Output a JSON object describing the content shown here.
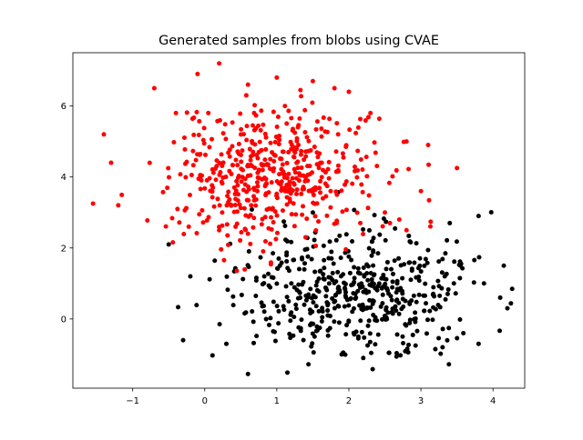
{
  "chart_data": {
    "type": "scatter",
    "title": "Generated samples from blobs using CVAE",
    "xlabel": "",
    "ylabel": "",
    "xlim": [
      -1.83,
      4.44
    ],
    "ylim": [
      -1.95,
      7.5
    ],
    "xticks": [
      -1,
      0,
      1,
      2,
      3,
      4
    ],
    "yticks": [
      0,
      2,
      4,
      6
    ],
    "xtick_labels": [
      "−1",
      "0",
      "1",
      "2",
      "3",
      "4"
    ],
    "ytick_labels": [
      "0",
      "2",
      "4",
      "6"
    ],
    "grid": false,
    "legend": false,
    "series": [
      {
        "color": "#ff0000",
        "generator": {
          "count": 500,
          "center": [
            0.95,
            4.05
          ],
          "spread": [
            0.7,
            0.95
          ],
          "seed": 7
        },
        "points": [
          [
            0.2,
            7.2
          ],
          [
            -0.1,
            6.9
          ],
          [
            0.6,
            6.6
          ],
          [
            1.0,
            6.8
          ],
          [
            1.5,
            6.7
          ],
          [
            1.8,
            6.5
          ],
          [
            -0.7,
            6.5
          ],
          [
            -0.4,
            5.8
          ],
          [
            -1.4,
            5.2
          ],
          [
            -1.55,
            3.25
          ],
          [
            -1.3,
            4.4
          ],
          [
            -1.2,
            3.2
          ],
          [
            0.2,
            2.5
          ],
          [
            0.6,
            2.4
          ],
          [
            1.4,
            2.3
          ],
          [
            2.7,
            2.8
          ],
          [
            2.8,
            2.5
          ],
          [
            3.5,
            4.25
          ],
          [
            3.1,
            4.9
          ],
          [
            2.8,
            5.0
          ],
          [
            3.0,
            3.6
          ],
          [
            2.5,
            3.0
          ],
          [
            2.0,
            6.4
          ],
          [
            2.3,
            5.8
          ]
        ]
      },
      {
        "color": "#000000",
        "generator": {
          "count": 500,
          "center": [
            2.1,
            0.75
          ],
          "spread": [
            0.85,
            0.85
          ],
          "seed": 13
        },
        "points": [
          [
            0.6,
            -1.55
          ],
          [
            1.5,
            3.0
          ],
          [
            3.4,
            2.7
          ],
          [
            3.8,
            2.9
          ],
          [
            4.15,
            1.5
          ],
          [
            4.2,
            0.3
          ],
          [
            4.1,
            0.6
          ],
          [
            3.8,
            -0.7
          ],
          [
            -0.3,
            -0.6
          ],
          [
            -0.5,
            2.1
          ],
          [
            -0.2,
            1.2
          ],
          [
            2.2,
            -1.1
          ],
          [
            0.3,
            -0.7
          ],
          [
            1.9,
            -1.0
          ],
          [
            3.2,
            -0.85
          ]
        ]
      }
    ]
  }
}
